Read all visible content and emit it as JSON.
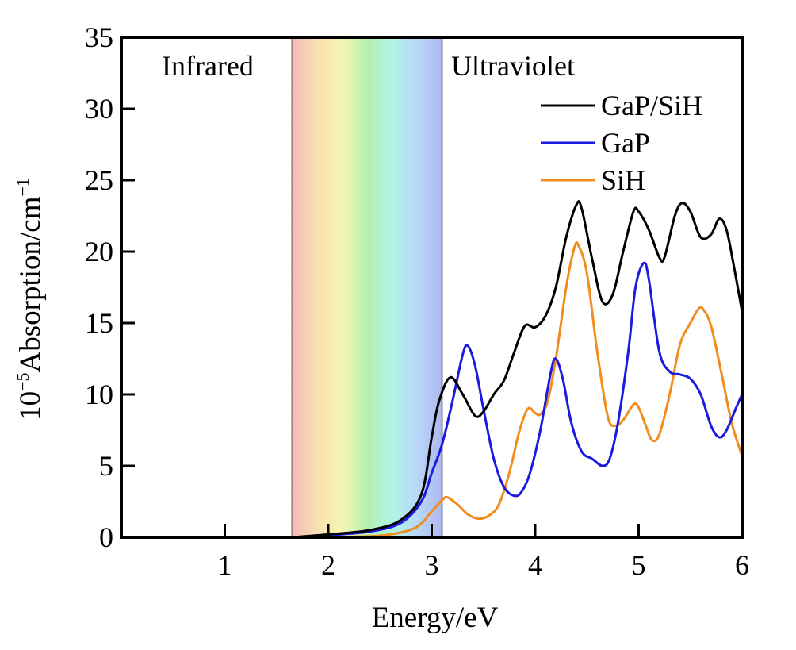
{
  "chart_data": {
    "type": "line",
    "title": "",
    "xlabel": "Energy/eV",
    "ylabel_parts": {
      "prefix": "10",
      "sup": "−5",
      "main": "Absorption/cm",
      "unit_sup": "−1"
    },
    "ylabel": "10⁻⁵Absorption/cm⁻¹",
    "xlim": [
      0,
      6
    ],
    "ylim": [
      0,
      35
    ],
    "xticks": [
      1,
      2,
      3,
      4,
      5,
      6
    ],
    "xtick_labels": [
      "1",
      "2",
      "3",
      "4",
      "5",
      "6"
    ],
    "yticks": [
      0,
      5,
      10,
      15,
      20,
      25,
      30,
      35
    ],
    "ytick_labels": [
      "0",
      "5",
      "10",
      "15",
      "20",
      "25",
      "30",
      "35"
    ],
    "grid": false,
    "legend_position": "top-right",
    "visible_band": {
      "start": 1.65,
      "end": 3.1,
      "gradient": [
        "#f5b8b8",
        "#f8e0b0",
        "#f6f5b0",
        "#b5f0b0",
        "#b0f5e6",
        "#b8d8f8",
        "#b0b8f0"
      ]
    },
    "annotations": [
      {
        "text": "Infrared",
        "region": "left"
      },
      {
        "text": "Ultraviolet",
        "region": "right"
      }
    ],
    "series": [
      {
        "name": "GaP/SiH",
        "color": "#000000",
        "x": [
          1.65,
          2.0,
          2.4,
          2.7,
          2.9,
          3.0,
          3.07,
          3.18,
          3.3,
          3.42,
          3.5,
          3.6,
          3.7,
          3.8,
          3.9,
          4.0,
          4.1,
          4.2,
          4.3,
          4.4,
          4.45,
          4.55,
          4.65,
          4.75,
          4.85,
          4.95,
          5.0,
          5.1,
          5.2,
          5.25,
          5.35,
          5.42,
          5.5,
          5.6,
          5.7,
          5.78,
          5.85,
          5.92,
          6.0
        ],
        "y": [
          0.0,
          0.2,
          0.5,
          1.2,
          3.0,
          7.0,
          9.5,
          11.2,
          10.0,
          8.5,
          8.8,
          10.0,
          11.0,
          13.0,
          14.8,
          14.7,
          15.5,
          17.5,
          21.0,
          23.3,
          23.0,
          19.5,
          16.5,
          17.0,
          20.0,
          22.8,
          22.8,
          21.5,
          19.6,
          19.6,
          22.5,
          23.4,
          22.8,
          21.0,
          21.2,
          22.3,
          21.5,
          19.0,
          15.8
        ]
      },
      {
        "name": "GaP",
        "color": "#1a1ae0",
        "x": [
          1.65,
          2.0,
          2.4,
          2.7,
          2.9,
          3.0,
          3.1,
          3.2,
          3.3,
          3.35,
          3.42,
          3.5,
          3.6,
          3.7,
          3.8,
          3.87,
          3.95,
          4.05,
          4.15,
          4.2,
          4.27,
          4.35,
          4.45,
          4.55,
          4.65,
          4.72,
          4.8,
          4.9,
          4.97,
          5.05,
          5.1,
          5.2,
          5.3,
          5.4,
          5.5,
          5.6,
          5.7,
          5.78,
          5.85,
          5.95,
          6.0
        ],
        "y": [
          0.0,
          0.15,
          0.4,
          1.0,
          2.5,
          4.5,
          6.5,
          9.5,
          12.8,
          13.4,
          12.0,
          9.0,
          5.5,
          3.5,
          2.9,
          3.2,
          4.5,
          7.5,
          11.5,
          12.5,
          11.0,
          8.0,
          6.0,
          5.5,
          5.0,
          5.5,
          8.0,
          13.0,
          17.5,
          19.2,
          18.0,
          13.0,
          11.6,
          11.4,
          11.1,
          10.0,
          7.8,
          7.0,
          7.5,
          9.2,
          10.0
        ]
      },
      {
        "name": "SiH",
        "color": "#f28c1c",
        "x": [
          1.65,
          2.3,
          2.6,
          2.85,
          3.0,
          3.1,
          3.15,
          3.25,
          3.35,
          3.45,
          3.55,
          3.65,
          3.75,
          3.85,
          3.93,
          4.0,
          4.05,
          4.12,
          4.2,
          4.3,
          4.38,
          4.42,
          4.5,
          4.6,
          4.7,
          4.77,
          4.85,
          4.95,
          5.0,
          5.07,
          5.13,
          5.2,
          5.3,
          5.4,
          5.5,
          5.58,
          5.62,
          5.7,
          5.8,
          5.9,
          6.0
        ],
        "y": [
          0.0,
          0.05,
          0.2,
          0.7,
          1.8,
          2.6,
          2.8,
          2.3,
          1.6,
          1.3,
          1.5,
          2.3,
          4.5,
          7.5,
          9.0,
          8.7,
          8.6,
          9.5,
          12.5,
          17.5,
          20.3,
          20.4,
          18.5,
          13.0,
          8.5,
          7.8,
          8.2,
          9.3,
          9.1,
          7.8,
          6.8,
          7.2,
          10.0,
          13.5,
          15.0,
          16.0,
          16.0,
          14.8,
          11.5,
          8.0,
          5.7
        ]
      }
    ]
  }
}
